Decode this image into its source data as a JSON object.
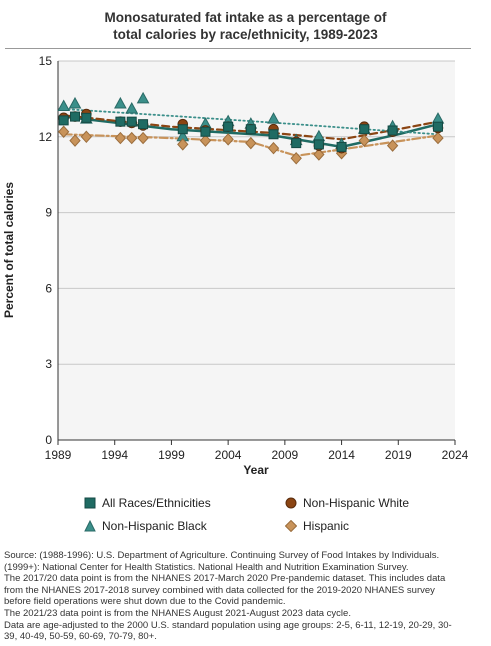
{
  "chart_data": {
    "type": "line",
    "title_lines": [
      "Monosaturated fat intake as a percentage of",
      "total calories by race/ethnicity, 1989-2023"
    ],
    "xlabel": "Year",
    "ylabel": "Percent of total calories",
    "xlim": [
      1989,
      2024
    ],
    "ylim": [
      0,
      15
    ],
    "xticks": [
      "1989",
      "1994",
      "1999",
      "2004",
      "2009",
      "2014",
      "2019",
      "2024"
    ],
    "yticks": [
      "0",
      "3",
      "6",
      "9",
      "12",
      "15"
    ],
    "grid": "horizontal",
    "series": [
      {
        "name": "All Races/Ethnicities",
        "marker": "square",
        "color": "#1f6b63",
        "points": [
          [
            1989.5,
            12.65
          ],
          [
            1990.5,
            12.8
          ],
          [
            1991.5,
            12.75
          ],
          [
            1994.5,
            12.6
          ],
          [
            1995.5,
            12.6
          ],
          [
            1996.5,
            12.5
          ],
          [
            2000,
            12.3
          ],
          [
            2002,
            12.2
          ],
          [
            2004,
            12.4
          ],
          [
            2006,
            12.3
          ],
          [
            2008,
            12.1
          ],
          [
            2010,
            11.75
          ],
          [
            2012,
            11.7
          ],
          [
            2014,
            11.6
          ],
          [
            2016,
            12.3
          ],
          [
            2018.5,
            12.25
          ],
          [
            2022.5,
            12.4
          ]
        ],
        "trend": [
          [
            1989.5,
            12.8
          ],
          [
            1999,
            12.3
          ],
          [
            2008,
            12.05
          ],
          [
            2014,
            11.6
          ],
          [
            2019,
            12.1
          ],
          [
            2022.5,
            12.5
          ]
        ],
        "trend_style": "solid"
      },
      {
        "name": "Non-Hispanic White",
        "marker": "circle",
        "color": "#8b4513",
        "points": [
          [
            1989.5,
            12.75
          ],
          [
            1990.5,
            12.8
          ],
          [
            1991.5,
            12.9
          ],
          [
            1994.5,
            12.6
          ],
          [
            1995.5,
            12.55
          ],
          [
            1996.5,
            12.45
          ],
          [
            2000,
            12.5
          ],
          [
            2002,
            12.25
          ],
          [
            2004,
            12.4
          ],
          [
            2006,
            12.3
          ],
          [
            2008,
            12.3
          ],
          [
            2010,
            11.8
          ],
          [
            2012,
            11.65
          ],
          [
            2014,
            11.55
          ],
          [
            2016,
            12.4
          ],
          [
            2018.5,
            12.2
          ],
          [
            2022.5,
            12.35
          ]
        ],
        "trend": [
          [
            1989.5,
            12.85
          ],
          [
            1999,
            12.4
          ],
          [
            2008,
            12.15
          ],
          [
            2014,
            11.9
          ],
          [
            2019,
            12.3
          ],
          [
            2022.5,
            12.6
          ]
        ],
        "trend_style": "dashed"
      },
      {
        "name": "Non-Hispanic Black",
        "marker": "triangle",
        "color": "#3b8f8a",
        "points": [
          [
            1989.5,
            13.2
          ],
          [
            1990.5,
            13.3
          ],
          [
            1991.5,
            12.7
          ],
          [
            1994.5,
            13.3
          ],
          [
            1995.5,
            13.1
          ],
          [
            1996.5,
            13.5
          ],
          [
            2000,
            12.0
          ],
          [
            2002,
            12.5
          ],
          [
            2004,
            12.6
          ],
          [
            2006,
            12.5
          ],
          [
            2008,
            12.7
          ],
          [
            2010,
            11.85
          ],
          [
            2012,
            12.0
          ],
          [
            2014,
            11.7
          ],
          [
            2016,
            12.3
          ],
          [
            2018.5,
            12.4
          ],
          [
            2022.5,
            12.7
          ]
        ],
        "trend": [
          [
            1989.5,
            13.1
          ],
          [
            2000,
            12.8
          ],
          [
            2010,
            12.5
          ],
          [
            2016,
            12.3
          ],
          [
            2022.5,
            12.1
          ]
        ],
        "trend_style": "dotted"
      },
      {
        "name": "Hispanic",
        "marker": "diamond",
        "color": "#c8935a",
        "points": [
          [
            1989.5,
            12.2
          ],
          [
            1990.5,
            11.85
          ],
          [
            1991.5,
            12.0
          ],
          [
            1994.5,
            11.95
          ],
          [
            1995.5,
            11.95
          ],
          [
            1996.5,
            11.95
          ],
          [
            2000,
            11.7
          ],
          [
            2002,
            11.85
          ],
          [
            2004,
            11.9
          ],
          [
            2006,
            11.75
          ],
          [
            2008,
            11.55
          ],
          [
            2010,
            11.15
          ],
          [
            2012,
            11.3
          ],
          [
            2014,
            11.35
          ],
          [
            2016,
            11.85
          ],
          [
            2018.5,
            11.65
          ],
          [
            2022.5,
            11.95
          ]
        ],
        "trend": [
          [
            1989.5,
            12.1
          ],
          [
            1999,
            11.95
          ],
          [
            2006,
            11.8
          ],
          [
            2010,
            11.25
          ],
          [
            2014,
            11.5
          ],
          [
            2022.5,
            12.05
          ]
        ],
        "trend_style": "dashdot"
      }
    ]
  },
  "source_lines": [
    "Source: (1988-1996): U.S. Department of Agriculture. Continuing Survey of Food Intakes by Individuals.",
    "(1999+): National Center for Health Statistics. National Health and Nutrition Examination Survey.",
    "The 2017/20 data point is from the NHANES 2017-March 2020 Pre-pandemic dataset. This includes data",
    "from the NHANES 2017-2018 survey combined with data collected for the 2019-2020 NHANES survey",
    "before field operations were shut down due to the Covid pandemic.",
    "The 2021/23 data point is from the NHANES August 2021-August 2023 data cycle.",
    "Data are age-adjusted to the 2000 U.S. standard population using age groups: 2-5, 6-11, 12-19, 20-29, 30-",
    "39, 40-49, 50-59, 60-69, 70-79, 80+."
  ]
}
